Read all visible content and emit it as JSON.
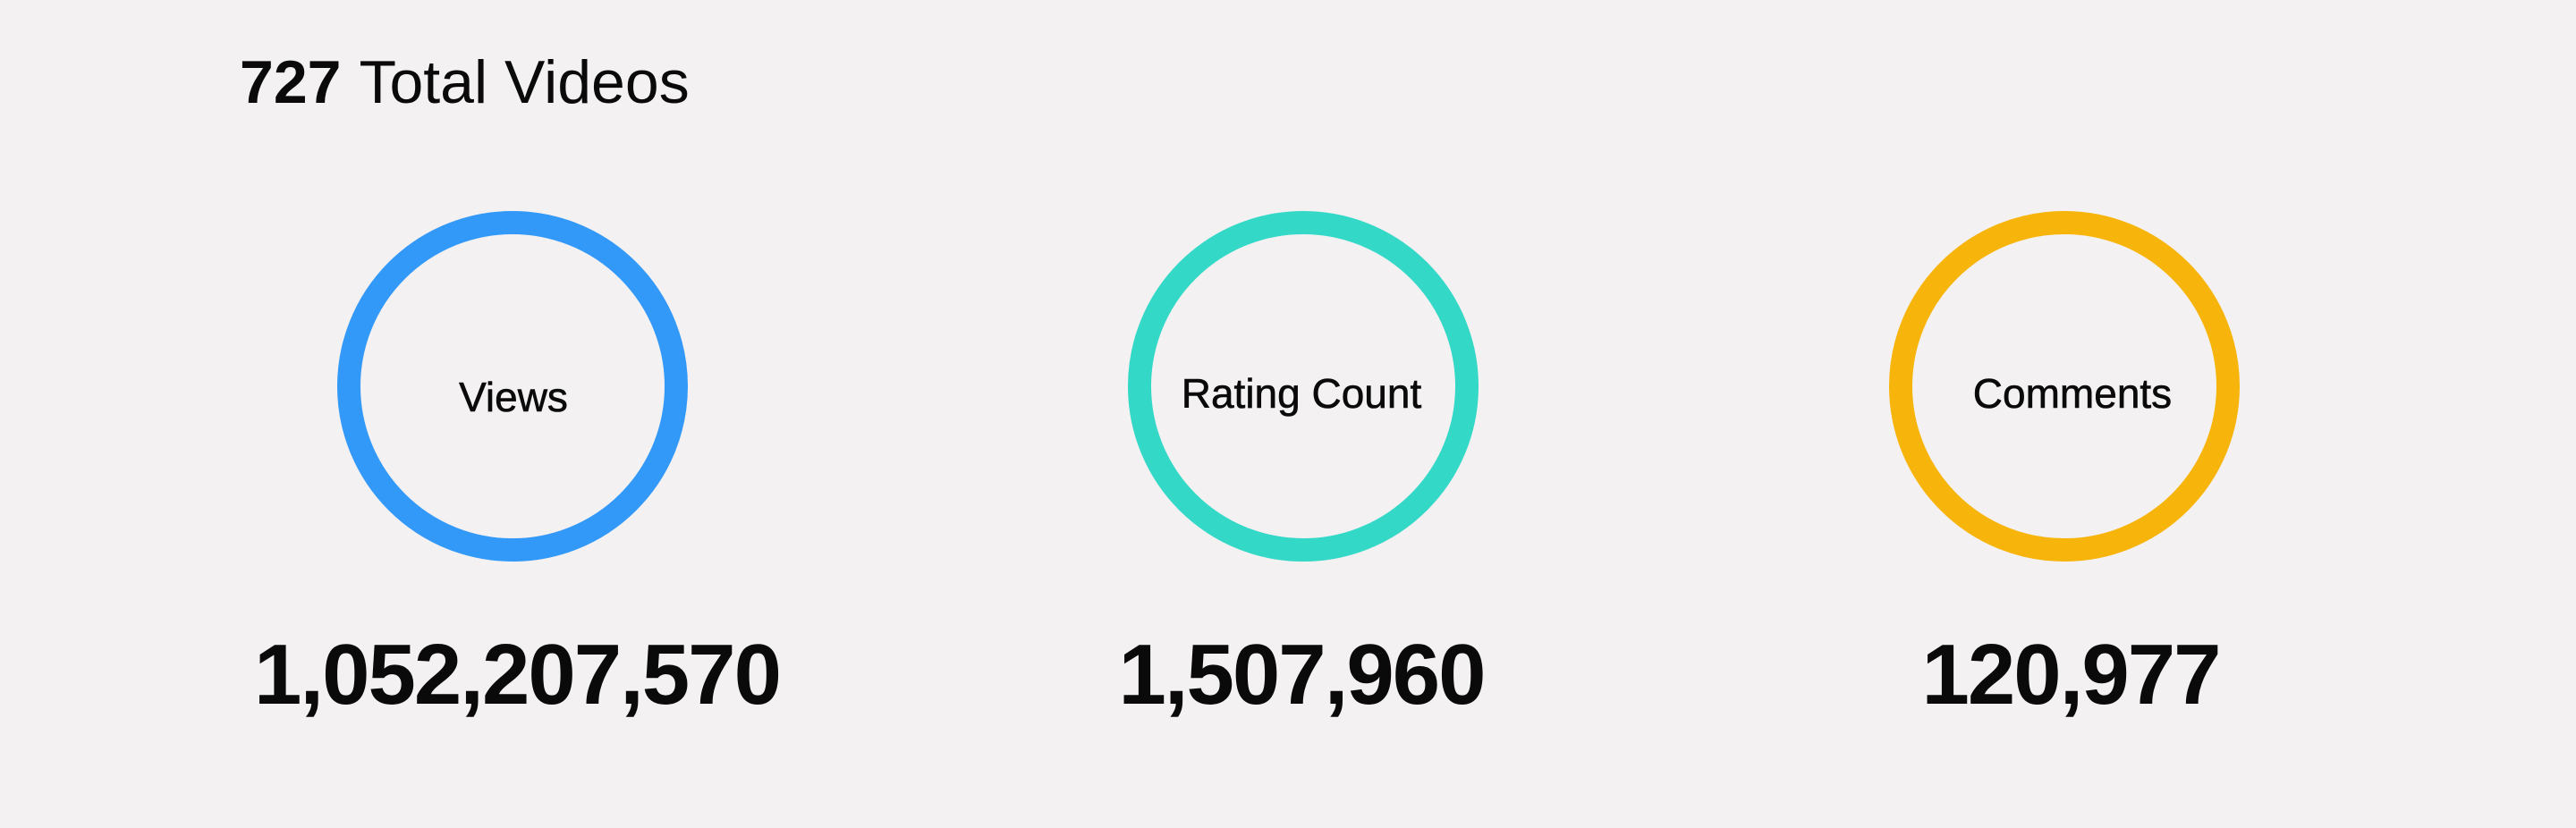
{
  "header": {
    "total_count": "727",
    "total_label": "Total Videos"
  },
  "stats": [
    {
      "label": "Views",
      "value": "1,052,207,570",
      "color": "#3399f8"
    },
    {
      "label": "Rating Count",
      "value": "1,507,960",
      "color": "#33d8c7"
    },
    {
      "label": "Comments",
      "value": "120,977",
      "color": "#f7b40b"
    }
  ]
}
